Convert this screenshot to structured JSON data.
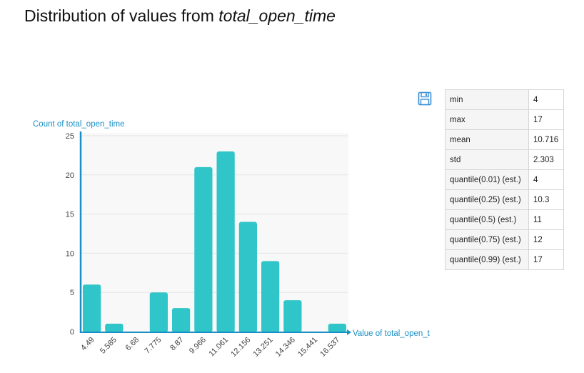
{
  "header": {
    "title_prefix": "Distribution of values from ",
    "title_field": "total_open_time"
  },
  "toolbar": {
    "save_icon": "floppy-disk-icon"
  },
  "stats": [
    {
      "label": "min",
      "value": "4"
    },
    {
      "label": "max",
      "value": "17"
    },
    {
      "label": "mean",
      "value": "10.716"
    },
    {
      "label": "std",
      "value": "2.303"
    },
    {
      "label": "quantile(0.01) (est.)",
      "value": "4"
    },
    {
      "label": "quantile(0.25) (est.)",
      "value": "10.3"
    },
    {
      "label": "quantile(0.5) (est.)",
      "value": "11"
    },
    {
      "label": "quantile(0.75) (est.)",
      "value": "12"
    },
    {
      "label": "quantile(0.99) (est.)",
      "value": "17"
    }
  ],
  "colors": {
    "bar": "#30c5c8",
    "axis": "#1a8fc4",
    "plot_bg": "#f8f8f8",
    "grid": "#e4e4e4"
  },
  "chart_data": {
    "type": "bar",
    "categories": [
      "4.49",
      "5.585",
      "6.68",
      "7.775",
      "8.87",
      "9.966",
      "11.061",
      "12.156",
      "13.251",
      "14.346",
      "15.441",
      "16.537"
    ],
    "values": [
      6,
      1,
      0,
      5,
      3,
      21,
      23,
      14,
      9,
      4,
      0,
      1
    ],
    "xlabel": "Value of total_open_t",
    "ylabel": "Count of total_open_time",
    "ylim": [
      0,
      25
    ],
    "yticks": [
      "0",
      "5",
      "10",
      "15",
      "20",
      "25"
    ],
    "grid": true,
    "legend": "none"
  }
}
